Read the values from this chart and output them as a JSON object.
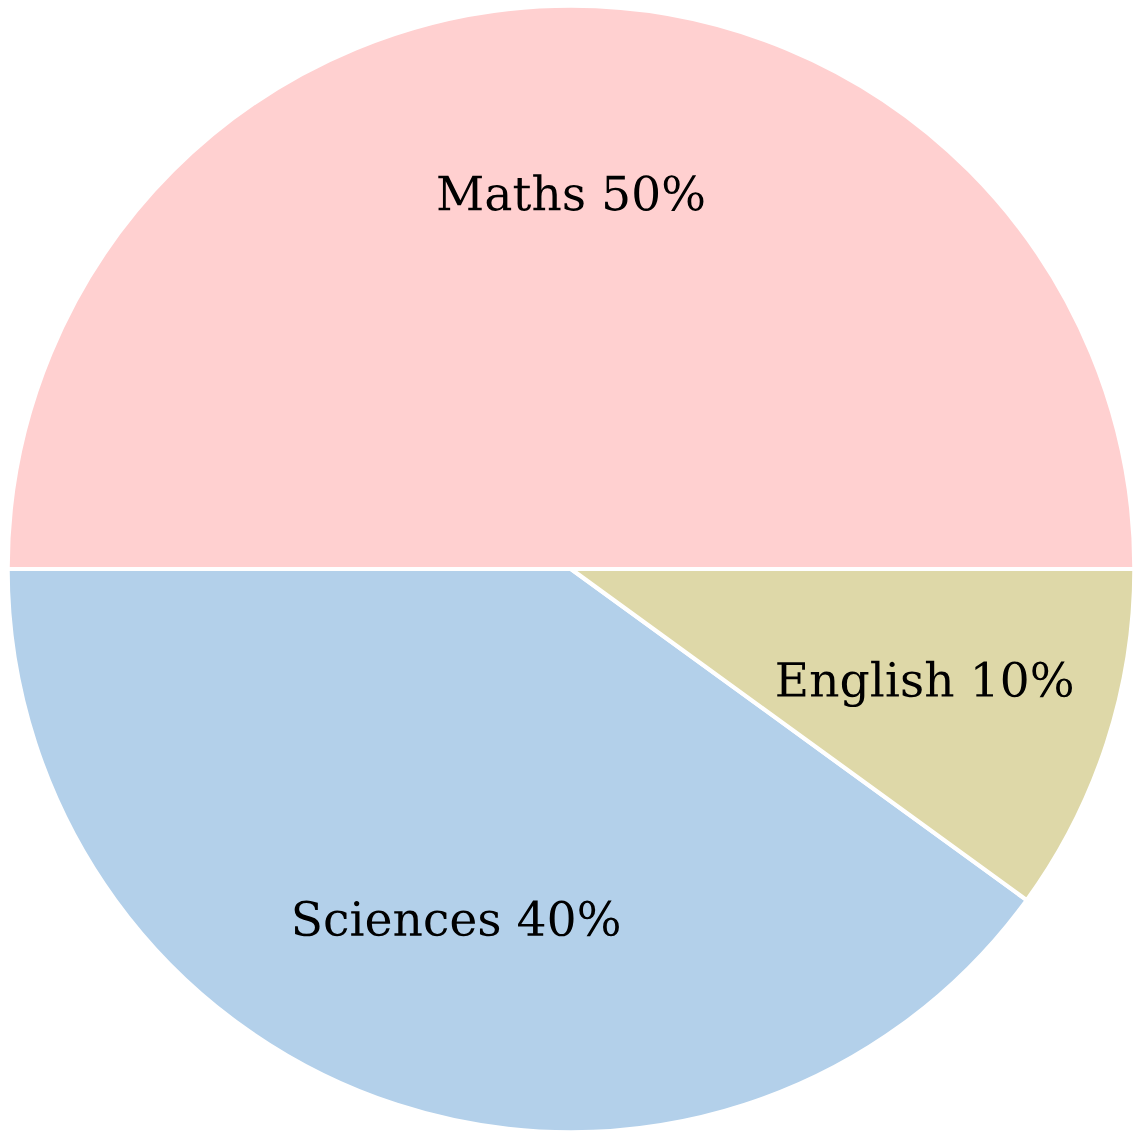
{
  "chart_data": {
    "type": "pie",
    "categories": [
      "Maths",
      "Sciences",
      "English"
    ],
    "values": [
      50,
      40,
      10
    ],
    "value_labels": [
      "50%",
      "40%",
      "10%"
    ],
    "colors": [
      "#ffd0d0",
      "#b3d0ea",
      "#ded8a8"
    ]
  }
}
